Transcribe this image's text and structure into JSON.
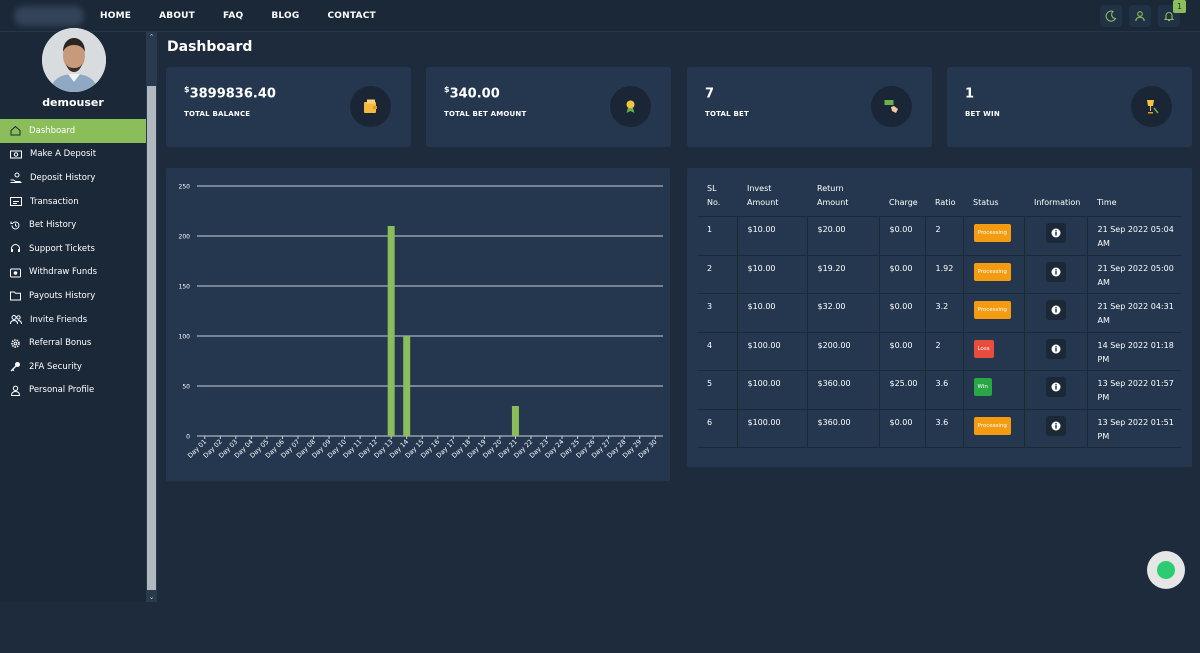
{
  "nav": {
    "items": [
      "HOME",
      "ABOUT",
      "FAQ",
      "BLOG",
      "CONTACT"
    ],
    "notification_count": "1",
    "icons": [
      "moon-icon",
      "user-icon",
      "bell-icon"
    ]
  },
  "sidebar": {
    "username": "demouser",
    "items": [
      {
        "label": "Dashboard",
        "icon": "home-icon",
        "active": true
      },
      {
        "label": "Make A Deposit",
        "icon": "money-icon"
      },
      {
        "label": "Deposit History",
        "icon": "hand-coin-icon"
      },
      {
        "label": "Transaction",
        "icon": "transaction-icon"
      },
      {
        "label": "Bet History",
        "icon": "history-icon"
      },
      {
        "label": "Support Tickets",
        "icon": "headset-icon"
      },
      {
        "label": "Withdraw Funds",
        "icon": "wallet-icon"
      },
      {
        "label": "Payouts History",
        "icon": "folder-icon"
      },
      {
        "label": "Invite Friends",
        "icon": "users-icon"
      },
      {
        "label": "Referral Bonus",
        "icon": "gear-icon"
      },
      {
        "label": "2FA Security",
        "icon": "key-icon"
      },
      {
        "label": "Personal Profile",
        "icon": "profile-icon"
      }
    ]
  },
  "page_title": "Dashboard",
  "cards": [
    {
      "currency": "$",
      "value": "3899836.40",
      "label": "TOTAL BALANCE",
      "icon": "wallet-icon"
    },
    {
      "currency": "$",
      "value": "340.00",
      "label": "TOTAL BET AMOUNT",
      "icon": "medal-icon"
    },
    {
      "currency": "",
      "value": "7",
      "label": "TOTAL BET",
      "icon": "bet-hand-icon"
    },
    {
      "currency": "",
      "value": "1",
      "label": "BET WIN",
      "icon": "trophy-icon"
    }
  ],
  "chart_data": {
    "type": "bar",
    "categories": [
      "Day 01",
      "Day 02",
      "Day 03",
      "Day 04",
      "Day 05",
      "Day 06",
      "Day 07",
      "Day 08",
      "Day 09",
      "Day 10",
      "Day 11",
      "Day 12",
      "Day 13",
      "Day 14",
      "Day 15",
      "Day 16",
      "Day 17",
      "Day 18",
      "Day 19",
      "Day 20",
      "Day 21",
      "Day 22",
      "Day 23",
      "Day 24",
      "Day 25",
      "Day 26",
      "Day 27",
      "Day 28",
      "Day 29",
      "Day 30"
    ],
    "values": [
      0,
      0,
      0,
      0,
      0,
      0,
      0,
      0,
      0,
      0,
      0,
      0,
      210,
      100,
      0,
      0,
      0,
      0,
      0,
      0,
      30,
      0,
      0,
      0,
      0,
      0,
      0,
      0,
      0,
      0
    ],
    "ylim": [
      0,
      250
    ],
    "yticks": [
      "0",
      "50",
      "100",
      "150",
      "200",
      "250"
    ],
    "grid": true,
    "color": "#8bbe5a"
  },
  "table": {
    "headers": [
      "SL No.",
      "Invest Amount",
      "Return Amount",
      "Charge",
      "Ratio",
      "Status",
      "Information",
      "Time"
    ],
    "rows": [
      {
        "sl": "1",
        "invest": "$10.00",
        "return": "$20.00",
        "charge": "$0.00",
        "ratio": "2",
        "status": "Processing",
        "time": "21 Sep 2022 05:04 AM"
      },
      {
        "sl": "2",
        "invest": "$10.00",
        "return": "$19.20",
        "charge": "$0.00",
        "ratio": "1.92",
        "status": "Processing",
        "time": "21 Sep 2022 05:00 AM"
      },
      {
        "sl": "3",
        "invest": "$10.00",
        "return": "$32.00",
        "charge": "$0.00",
        "ratio": "3.2",
        "status": "Processing",
        "time": "21 Sep 2022 04:31 AM"
      },
      {
        "sl": "4",
        "invest": "$100.00",
        "return": "$200.00",
        "charge": "$0.00",
        "ratio": "2",
        "status": "Loss",
        "time": "14 Sep 2022 01:18 PM"
      },
      {
        "sl": "5",
        "invest": "$100.00",
        "return": "$360.00",
        "charge": "$25.00",
        "ratio": "3.6",
        "status": "Win",
        "time": "13 Sep 2022 01:57 PM"
      },
      {
        "sl": "6",
        "invest": "$100.00",
        "return": "$360.00",
        "charge": "$0.00",
        "ratio": "3.6",
        "status": "Processing",
        "time": "13 Sep 2022 01:51 PM"
      }
    ]
  }
}
